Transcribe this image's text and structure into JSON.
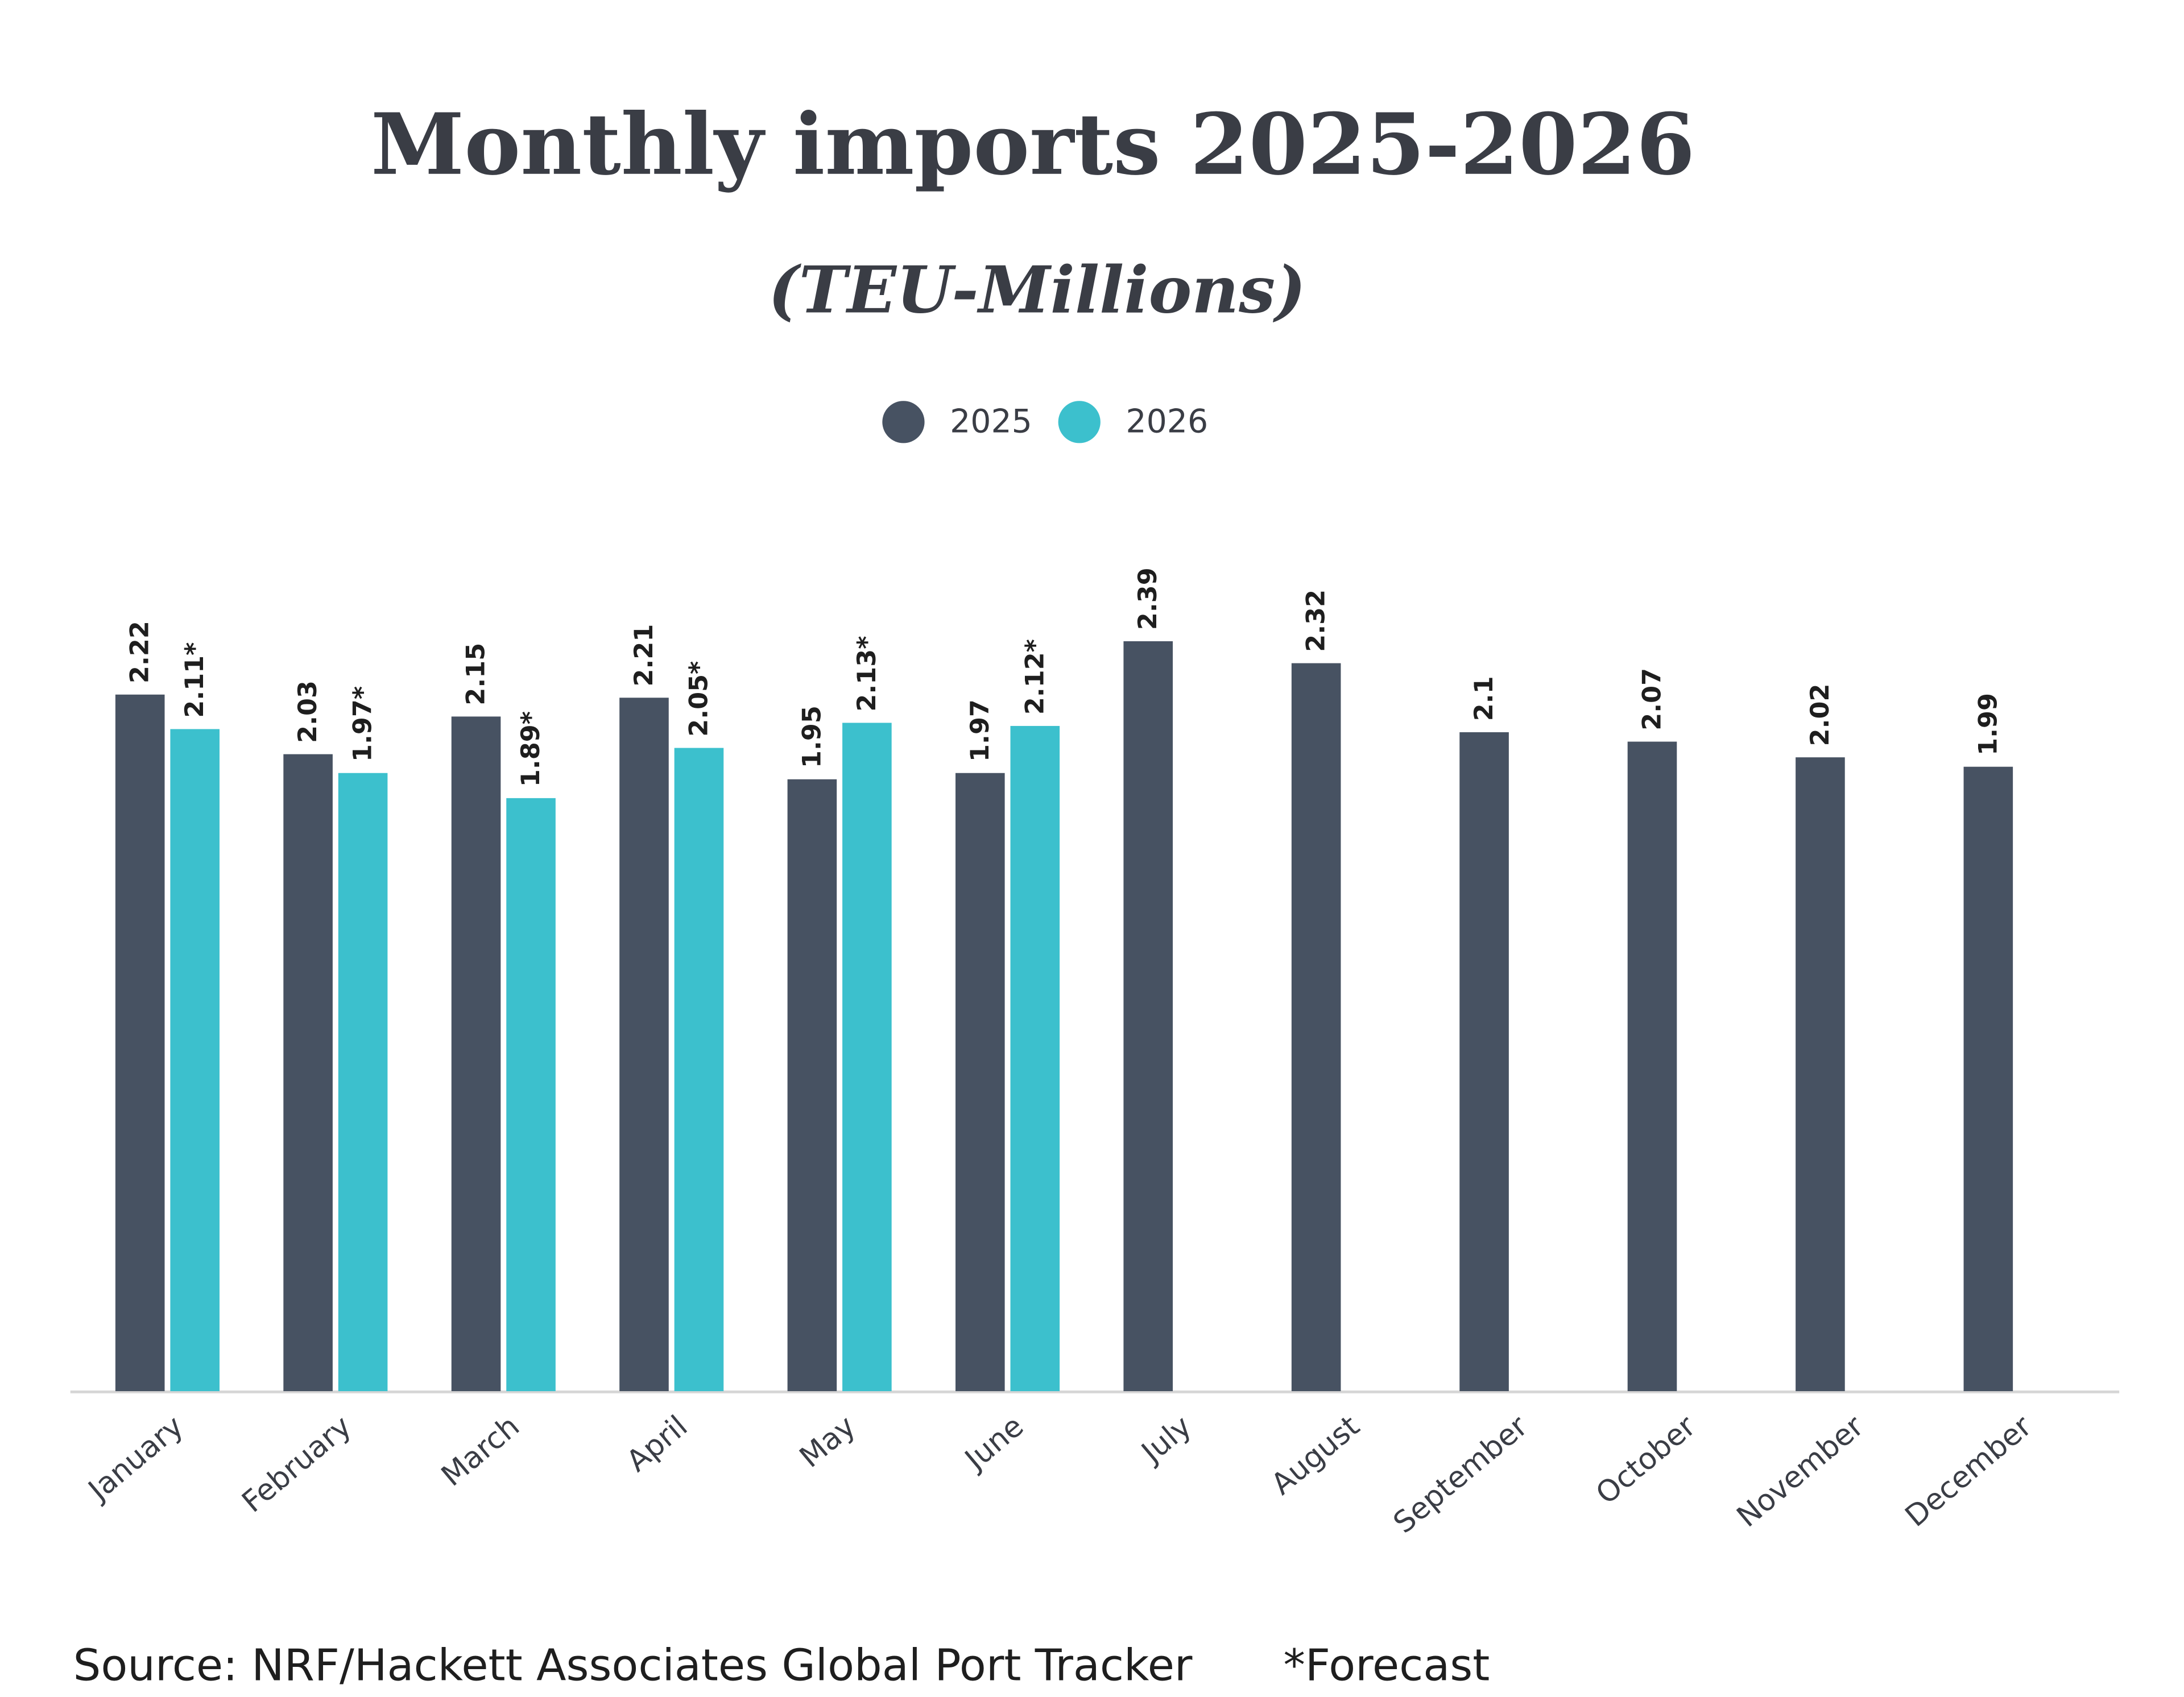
{
  "chart_data": {
    "type": "bar",
    "title": "Monthly imports 2025-2026",
    "subtitle": "(TEU-Millions)",
    "categories": [
      "January",
      "February",
      "March",
      "April",
      "May",
      "June",
      "July",
      "August",
      "September",
      "October",
      "November",
      "December"
    ],
    "series": [
      {
        "name": "2025",
        "color": "#475262",
        "values": [
          2.22,
          2.03,
          2.15,
          2.21,
          1.95,
          1.97,
          2.39,
          2.32,
          2.1,
          2.07,
          2.02,
          1.99
        ]
      },
      {
        "name": "2026",
        "color": "#3cc0cd",
        "values": [
          2.11,
          1.97,
          1.89,
          2.05,
          2.13,
          2.12,
          null,
          null,
          null,
          null,
          null,
          null
        ],
        "value_labels": [
          "2.11*",
          "1.97*",
          "1.89*",
          "2.05*",
          "2.13*",
          "2.12*",
          null,
          null,
          null,
          null,
          null,
          null
        ]
      }
    ],
    "ylim": [
      0,
      2.6
    ],
    "legend": "top",
    "source": "Source: NRF/Hackett Associates Global Port Tracker",
    "note": "*Forecast"
  }
}
